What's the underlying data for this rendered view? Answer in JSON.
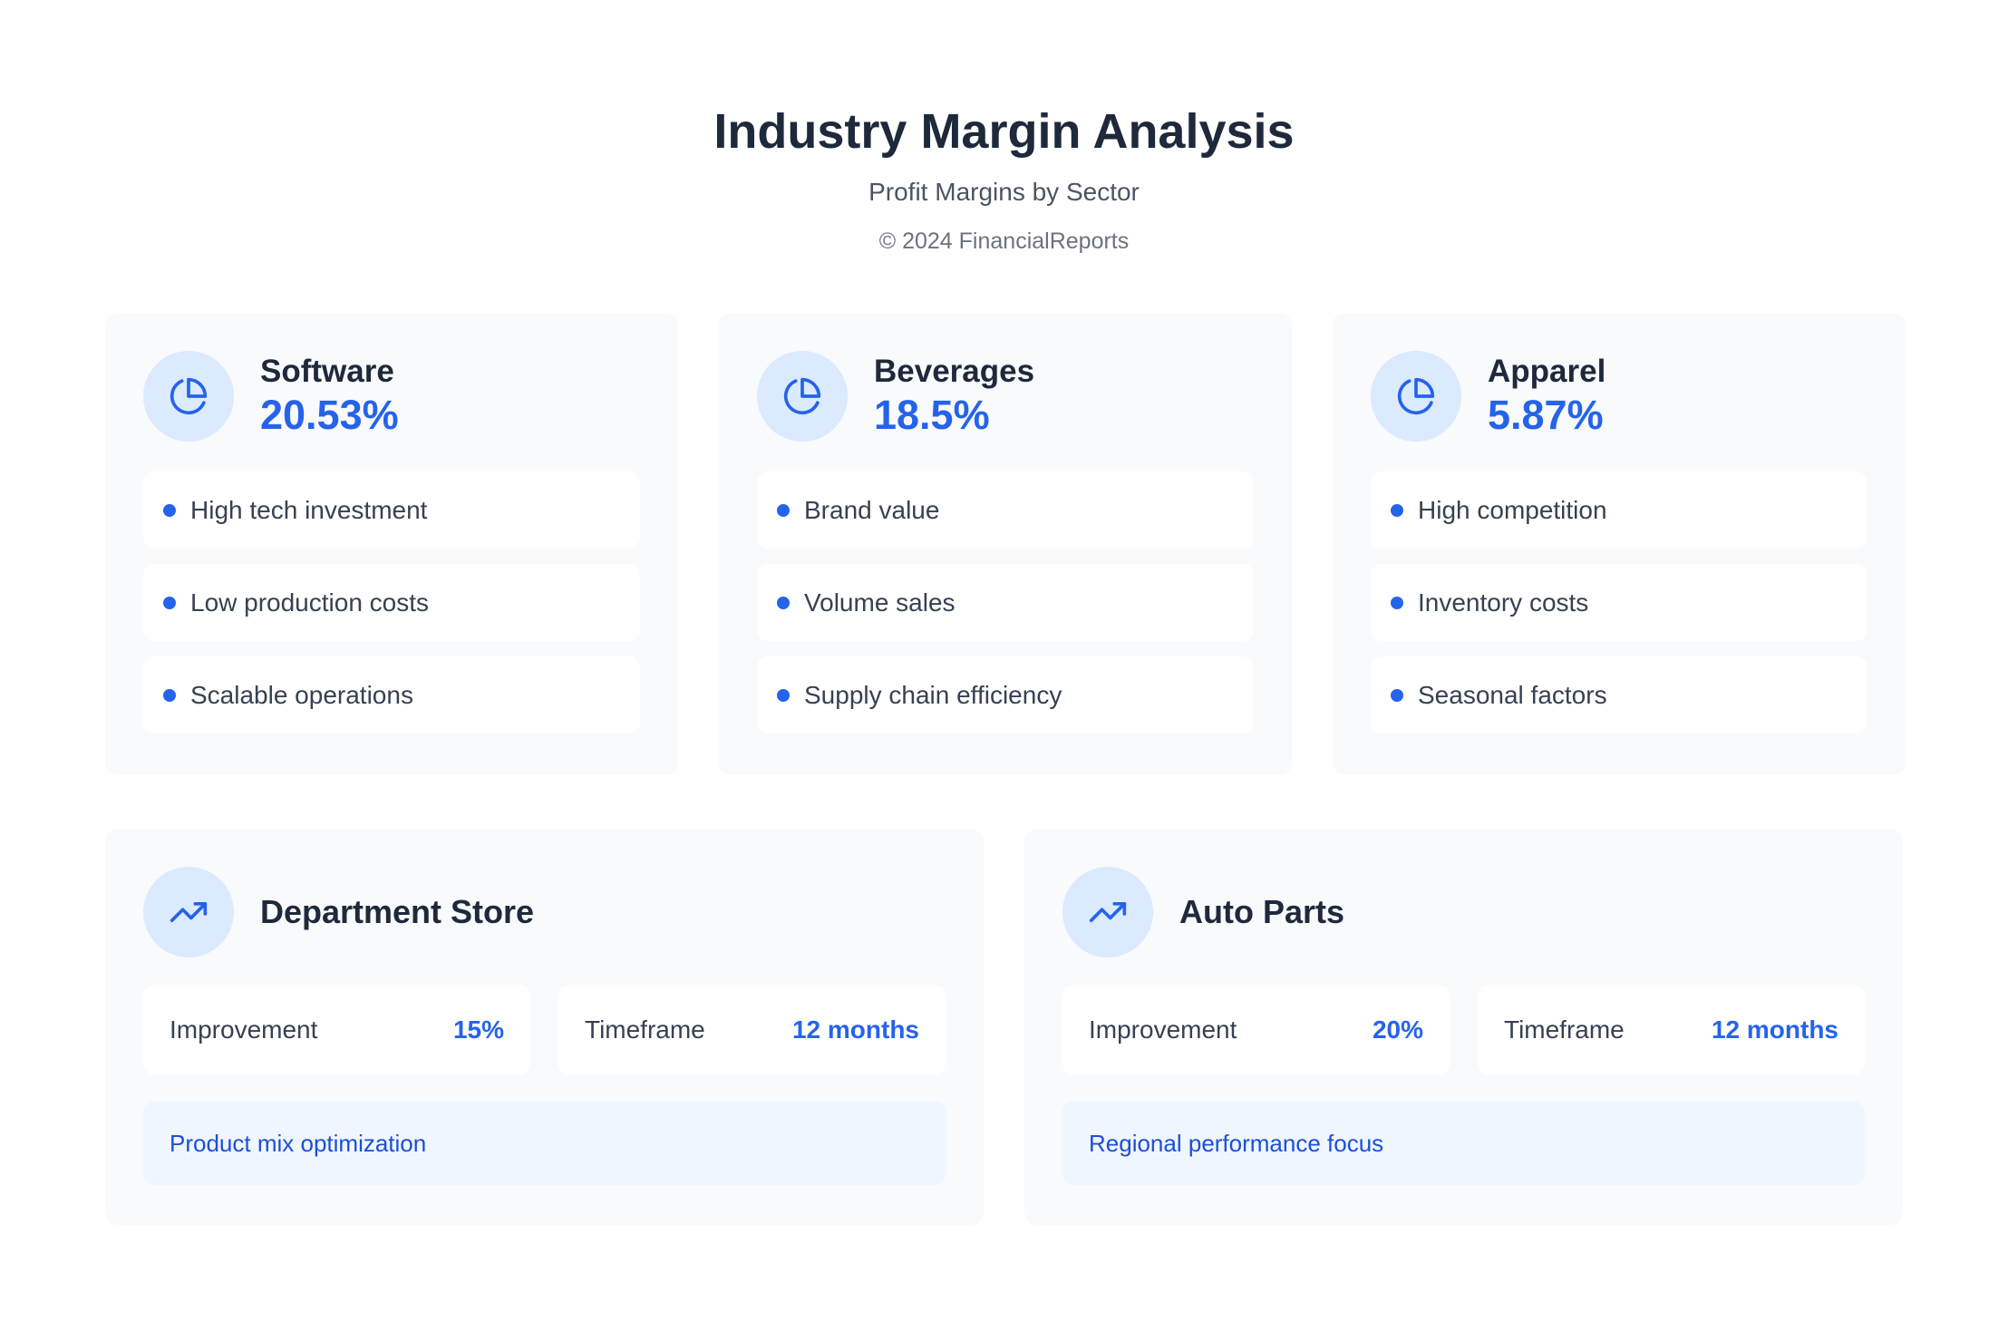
{
  "header": {
    "title": "Industry Margin Analysis",
    "subtitle": "Profit Margins by Sector",
    "copyright": "© 2024 FinancialReports"
  },
  "sectors": [
    {
      "name": "Software",
      "margin": "20.53%",
      "factors": [
        "High tech investment",
        "Low production costs",
        "Scalable operations"
      ]
    },
    {
      "name": "Beverages",
      "margin": "18.5%",
      "factors": [
        "Brand value",
        "Volume sales",
        "Supply chain efficiency"
      ]
    },
    {
      "name": "Apparel",
      "margin": "5.87%",
      "factors": [
        "High competition",
        "Inventory costs",
        "Seasonal factors"
      ]
    }
  ],
  "improvements": [
    {
      "name": "Department Store",
      "metrics": [
        {
          "label": "Improvement",
          "value": "15%"
        },
        {
          "label": "Timeframe",
          "value": "12 months"
        }
      ],
      "note": "Product mix optimization"
    },
    {
      "name": "Auto Parts",
      "metrics": [
        {
          "label": "Improvement",
          "value": "20%"
        },
        {
          "label": "Timeframe",
          "value": "12 months"
        }
      ],
      "note": "Regional performance focus"
    }
  ]
}
